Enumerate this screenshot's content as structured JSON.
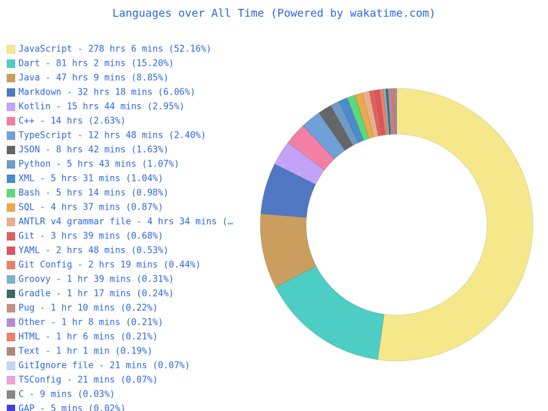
{
  "chart_data": {
    "type": "donut",
    "title": "Languages over All Time (Powered by wakatime.com)",
    "categories": [
      "JavaScript - 278 hrs 6 mins (52.16%)",
      "Dart - 81 hrs 2 mins (15.20%)",
      "Java - 47 hrs 9 mins (8.85%)",
      "Markdown - 32 hrs 18 mins (6.06%)",
      "Kotlin - 15 hrs 44 mins (2.95%)",
      "C++ - 14 hrs (2.63%)",
      "TypeScript - 12 hrs 48 mins (2.40%)",
      "JSON - 8 hrs 42 mins (1.63%)",
      "Python - 5 hrs 43 mins (1.07%)",
      "XML - 5 hrs 31 mins (1.04%)",
      "Bash - 5 hrs 14 mins (0.98%)",
      "SQL - 4 hrs 37 mins (0.87%)",
      "ANTLR v4 grammar file - 4 hrs 34 mins (…",
      "Git - 3 hrs 39 mins (0.68%)",
      "YAML - 2 hrs 48 mins (0.53%)",
      "Git Config - 2 hrs 19 mins (0.44%)",
      "Groovy - 1 hr 39 mins (0.31%)",
      "Gradle - 1 hr 17 mins (0.24%)",
      "Pug - 1 hr 10 mins (0.22%)",
      "Other - 1 hr 8 mins (0.21%)",
      "HTML - 1 hr 6 mins (0.21%)",
      "Text - 1 hr 1 min (0.19%)",
      "GitIgnore file - 21 mins (0.07%)",
      "TSConfig - 21 mins (0.07%)",
      "C - 9 mins (0.03%)",
      "GAP - 5 mins (0.02%)"
    ],
    "values": [
      52.16,
      15.2,
      8.85,
      6.06,
      2.95,
      2.63,
      2.4,
      1.63,
      1.07,
      1.04,
      0.98,
      0.87,
      0.85,
      0.68,
      0.53,
      0.44,
      0.31,
      0.24,
      0.22,
      0.21,
      0.21,
      0.19,
      0.07,
      0.07,
      0.03,
      0.02
    ],
    "colors": [
      "#f5e88a",
      "#4ecdc4",
      "#c99e5f",
      "#5078c2",
      "#c3a3f7",
      "#f47fa4",
      "#6fa0d8",
      "#666666",
      "#709bc4",
      "#4a8ccc",
      "#5cd97a",
      "#eba94a",
      "#e8b08a",
      "#e06060",
      "#e0525e",
      "#f08060",
      "#7ab3cc",
      "#3f6a6a",
      "#c49088",
      "#b08cd4",
      "#f07f60",
      "#b08878",
      "#c4d8f0",
      "#f0a0d8",
      "#888888",
      "#4040e0"
    ]
  }
}
